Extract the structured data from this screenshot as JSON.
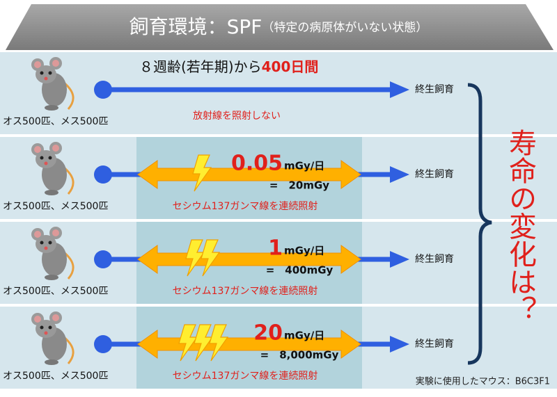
{
  "header": {
    "title": "飼育環境：SPF",
    "subtitle": "（特定の病原体がいない状態）"
  },
  "rows": [
    {
      "group": "オス500匹、メス500匹",
      "period": "８週齢(若年期)から",
      "period_highlight": "400日間",
      "note": "放射線を照射しない",
      "outcome": "終生飼育"
    },
    {
      "group": "オス500匹、メス500匹",
      "dose_rate": "0.05",
      "dose_unit": "mGy/日",
      "total": "=　20mGy",
      "note": "セシウム137ガンマ線を連続照射",
      "outcome": "終生飼育"
    },
    {
      "group": "オス500匹、メス500匹",
      "dose_rate": "1",
      "dose_unit": "mGy/日",
      "total": "=　400mGy",
      "note": "セシウム137ガンマ線を連続照射",
      "outcome": "終生飼育"
    },
    {
      "group": "オス500匹、メス500匹",
      "dose_rate": "20",
      "dose_unit": "mGy/日",
      "total": "=　8,000mGy",
      "note": "セシウム137ガンマ線を連続照射",
      "outcome": "終生飼育"
    }
  ],
  "question": "寿命の変化は？",
  "footnote": "実験に使用したマウス：B6C3F1"
}
